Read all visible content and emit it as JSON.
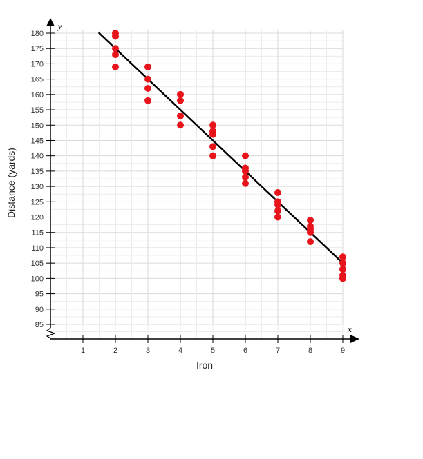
{
  "chart_data": {
    "type": "scatter",
    "title": "",
    "xlabel": "Iron",
    "ylabel": "Distance (yards)",
    "x_axis_letter": "x",
    "y_axis_letter": "y",
    "xlim": [
      0,
      9
    ],
    "ylim": [
      85,
      180
    ],
    "axis_break_below": 85,
    "grid": true,
    "x_ticks": [
      "1",
      "2",
      "3",
      "4",
      "5",
      "6",
      "7",
      "8",
      "9"
    ],
    "y_ticks": [
      "85",
      "90",
      "95",
      "100",
      "105",
      "110",
      "115",
      "120",
      "125",
      "130",
      "135",
      "140",
      "145",
      "150",
      "155",
      "160",
      "165",
      "170",
      "175",
      "180"
    ],
    "series": [
      {
        "type": "scatter",
        "color": "#e8141b",
        "points": [
          [
            2,
            180
          ],
          [
            2,
            179
          ],
          [
            2,
            175
          ],
          [
            2,
            173
          ],
          [
            2,
            169
          ],
          [
            3,
            169
          ],
          [
            3,
            165
          ],
          [
            3,
            162
          ],
          [
            3,
            158
          ],
          [
            4,
            160
          ],
          [
            4,
            158
          ],
          [
            4,
            153
          ],
          [
            4,
            150
          ],
          [
            5,
            150
          ],
          [
            5,
            148
          ],
          [
            5,
            147
          ],
          [
            5,
            143
          ],
          [
            5,
            140
          ],
          [
            6,
            140
          ],
          [
            6,
            136
          ],
          [
            6,
            135
          ],
          [
            6,
            133
          ],
          [
            6,
            131
          ],
          [
            7,
            128
          ],
          [
            7,
            125
          ],
          [
            7,
            124
          ],
          [
            7,
            122
          ],
          [
            7,
            120
          ],
          [
            8,
            119
          ],
          [
            8,
            117
          ],
          [
            8,
            116
          ],
          [
            8,
            115
          ],
          [
            8,
            112
          ],
          [
            9,
            107
          ],
          [
            9,
            105
          ],
          [
            9,
            103
          ],
          [
            9,
            101
          ],
          [
            9,
            100
          ]
        ]
      },
      {
        "type": "line",
        "color": "#000000",
        "points": [
          [
            1.5,
            180
          ],
          [
            9,
            105
          ]
        ]
      }
    ]
  }
}
